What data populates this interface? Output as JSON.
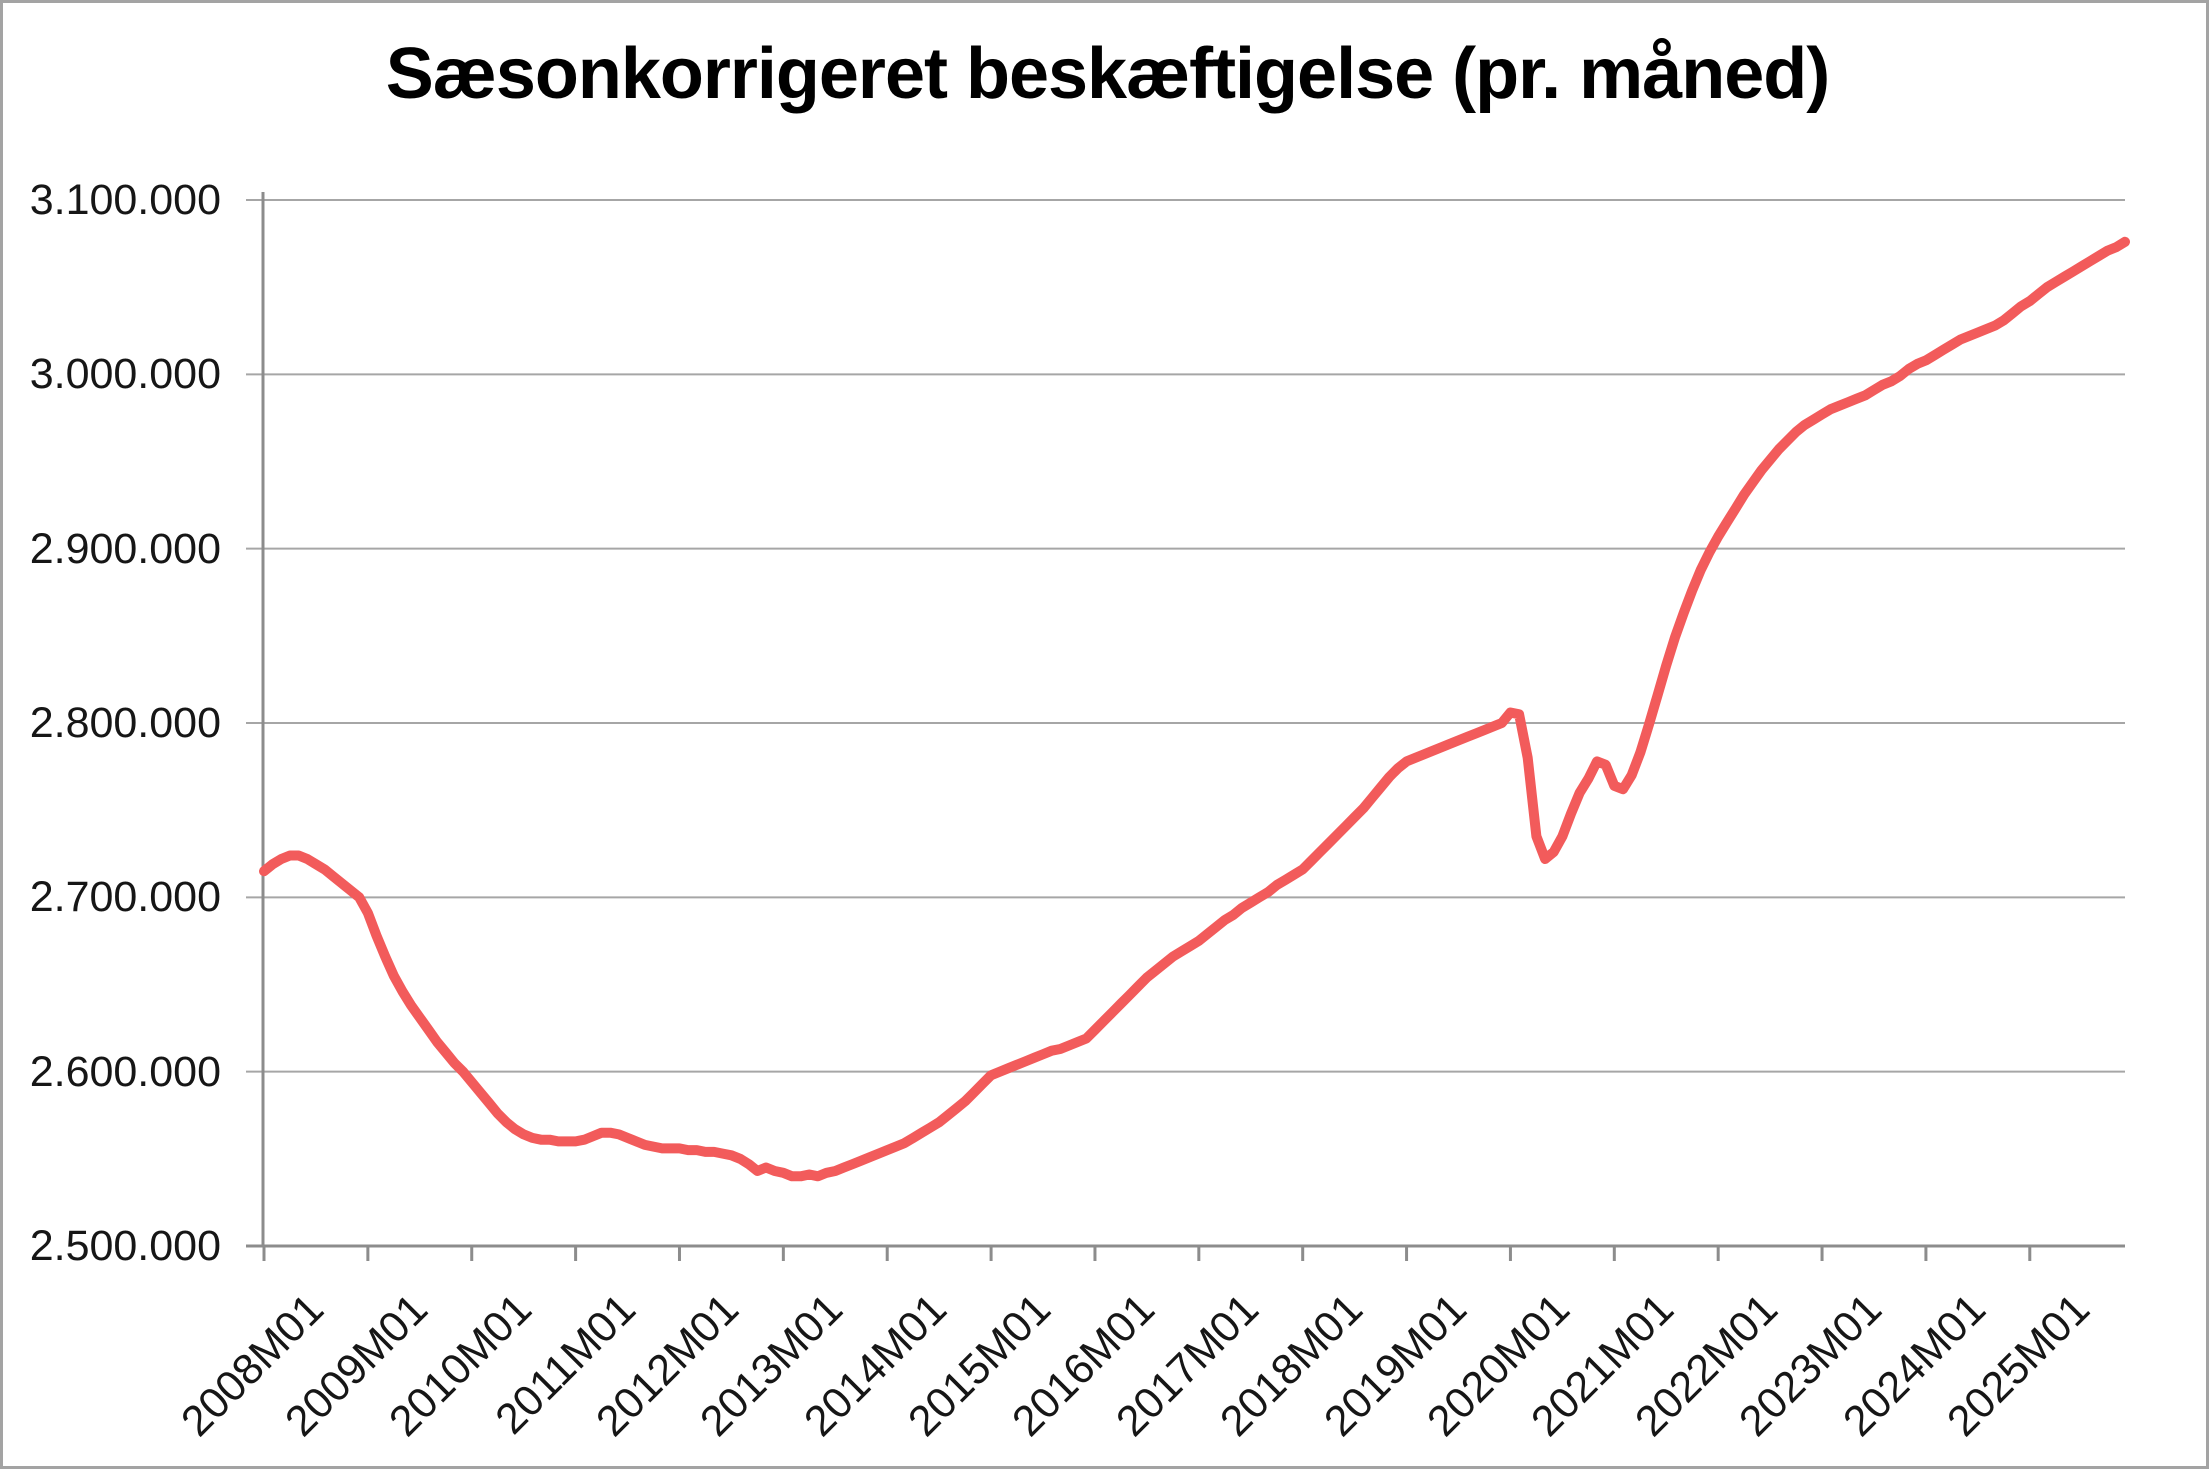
{
  "title": "Sæsonkorrigeret beskæftigelse (pr. måned)",
  "colors": {
    "line": "#f25b5b",
    "gridline": "#a6a6a6",
    "axis": "#8c8c8c",
    "text": "#161616",
    "background": "#ffffff",
    "border": "#a3a3a3"
  },
  "chart_data": {
    "type": "line",
    "title": "Sæsonkorrigeret beskæftigelse (pr. måned)",
    "xlabel": "",
    "ylabel": "",
    "ylim": [
      2500000,
      3100000
    ],
    "grid": "horizontal",
    "legend": "none",
    "start_period": "2008M01",
    "end_period": "2025M12",
    "x_tick_interval_months": 12,
    "x_tick_labels": [
      "2008M01",
      "2009M01",
      "2010M01",
      "2011M01",
      "2012M01",
      "2013M01",
      "2014M01",
      "2015M01",
      "2016M01",
      "2017M01",
      "2018M01",
      "2019M01",
      "2020M01",
      "2021M01",
      "2022M01",
      "2023M01",
      "2024M01",
      "2025M01"
    ],
    "y_ticks": [
      {
        "label": "3.100.000",
        "value": 3100000
      },
      {
        "label": "3.000.000",
        "value": 3000000
      },
      {
        "label": "2.900.000",
        "value": 2900000
      },
      {
        "label": "2.800.000",
        "value": 2800000
      },
      {
        "label": "2.700.000",
        "value": 2700000
      },
      {
        "label": "2.600.000",
        "value": 2600000
      },
      {
        "label": "2.500.000",
        "value": 2500000
      }
    ],
    "series": [
      {
        "name": "Sæsonkorrigeret beskæftigelse",
        "values": [
          2715000,
          2719000,
          2722000,
          2724000,
          2724000,
          2722000,
          2719000,
          2716000,
          2712000,
          2708000,
          2704000,
          2700000,
          2691000,
          2678000,
          2666000,
          2655000,
          2646000,
          2638000,
          2631000,
          2624000,
          2617000,
          2611000,
          2605000,
          2600000,
          2594000,
          2588000,
          2582000,
          2576000,
          2571000,
          2567000,
          2564000,
          2562000,
          2561000,
          2561000,
          2560000,
          2560000,
          2560000,
          2561000,
          2563000,
          2565000,
          2565000,
          2564000,
          2562000,
          2560000,
          2558000,
          2557000,
          2556000,
          2556000,
          2556000,
          2555000,
          2555000,
          2554000,
          2554000,
          2553000,
          2552000,
          2550000,
          2547000,
          2543000,
          2545000,
          2543000,
          2542000,
          2540000,
          2540000,
          2541000,
          2540000,
          2542000,
          2543000,
          2545000,
          2547000,
          2549000,
          2551000,
          2553000,
          2555000,
          2557000,
          2559000,
          2562000,
          2565000,
          2568000,
          2571000,
          2575000,
          2579000,
          2583000,
          2588000,
          2593000,
          2598000,
          2600000,
          2602000,
          2604000,
          2606000,
          2608000,
          2610000,
          2612000,
          2613000,
          2615000,
          2617000,
          2619000,
          2624000,
          2629000,
          2634000,
          2639000,
          2644000,
          2649000,
          2654000,
          2658000,
          2662000,
          2666000,
          2669000,
          2672000,
          2675000,
          2679000,
          2683000,
          2687000,
          2690000,
          2694000,
          2697000,
          2700000,
          2703000,
          2707000,
          2710000,
          2713000,
          2716000,
          2721000,
          2726000,
          2731000,
          2736000,
          2741000,
          2746000,
          2751000,
          2757000,
          2763000,
          2769000,
          2774000,
          2778000,
          2780000,
          2782000,
          2784000,
          2786000,
          2788000,
          2790000,
          2792000,
          2794000,
          2796000,
          2798000,
          2800000,
          2806000,
          2805000,
          2780000,
          2735000,
          2722000,
          2726000,
          2735000,
          2748000,
          2760000,
          2768000,
          2778000,
          2776000,
          2764000,
          2762000,
          2770000,
          2783000,
          2799000,
          2816000,
          2833000,
          2849000,
          2863000,
          2876000,
          2888000,
          2898000,
          2907000,
          2915000,
          2923000,
          2931000,
          2938000,
          2945000,
          2951000,
          2957000,
          2962000,
          2967000,
          2971000,
          2974000,
          2977000,
          2980000,
          2982000,
          2984000,
          2986000,
          2988000,
          2991000,
          2994000,
          2996000,
          2999000,
          3003000,
          3006000,
          3008000,
          3011000,
          3014000,
          3017000,
          3020000,
          3022000,
          3024000,
          3026000,
          3028000,
          3031000,
          3035000,
          3039000,
          3042000,
          3046000,
          3050000,
          3053000,
          3056000,
          3059000,
          3062000,
          3065000,
          3068000,
          3071000,
          3073000,
          3076000
        ]
      }
    ]
  }
}
